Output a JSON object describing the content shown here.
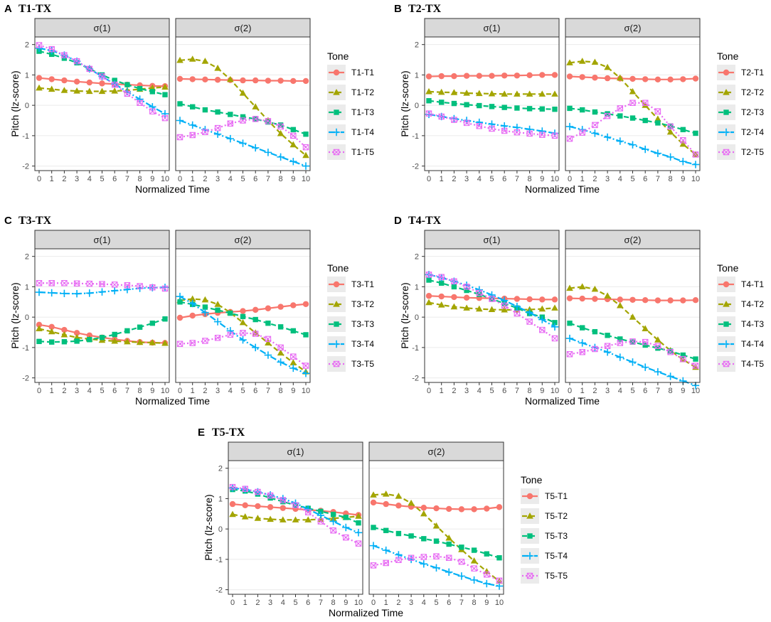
{
  "figure": {
    "colors": {
      "T1": "#F8766D",
      "T2": "#A3A500",
      "T3": "#00BF7D",
      "T4": "#00B0F6",
      "T5": "#E76BF3"
    },
    "markers": {
      "T1": "circle",
      "T2": "triangle",
      "T3": "square",
      "T4": "plus",
      "T5": "square-cross"
    }
  },
  "chart_data": [
    {
      "type": "line",
      "panel_letter": "A",
      "title": "T1-TX",
      "facets": [
        "σ(1)",
        "σ(2)"
      ],
      "xlabel": "Normalized Time",
      "ylabel": "Pitch (lz-score)",
      "x": [
        0,
        1,
        2,
        3,
        4,
        5,
        6,
        7,
        8,
        9,
        10
      ],
      "ylim": [
        -2.15,
        2.25
      ],
      "yticks": [
        -2,
        -1,
        0,
        1,
        2
      ],
      "legend_title": "Tone",
      "series": [
        {
          "name": "T1-T1",
          "tone": "T1",
          "facet1": [
            0.9,
            0.86,
            0.82,
            0.78,
            0.75,
            0.72,
            0.7,
            0.68,
            0.66,
            0.64,
            0.63
          ],
          "facet2": [
            0.87,
            0.86,
            0.85,
            0.84,
            0.83,
            0.82,
            0.82,
            0.81,
            0.81,
            0.8,
            0.8
          ]
        },
        {
          "name": "T1-T2",
          "tone": "T1",
          "facet1": [
            0.57,
            0.53,
            0.49,
            0.47,
            0.46,
            0.46,
            0.47,
            0.49,
            0.53,
            0.57,
            0.6
          ],
          "facet2": [
            1.48,
            1.52,
            1.45,
            1.22,
            0.85,
            0.4,
            -0.05,
            -0.5,
            -0.93,
            -1.3,
            -1.65
          ]
        },
        {
          "name": "T1-T3",
          "tone": "T1",
          "facet1": [
            1.78,
            1.68,
            1.55,
            1.4,
            1.2,
            1.0,
            0.82,
            0.68,
            0.55,
            0.45,
            0.35
          ],
          "facet2": [
            0.05,
            -0.05,
            -0.15,
            -0.22,
            -0.3,
            -0.38,
            -0.45,
            -0.55,
            -0.65,
            -0.8,
            -0.95
          ]
        },
        {
          "name": "T1-T4",
          "tone": "T1",
          "facet1": [
            1.88,
            1.8,
            1.65,
            1.45,
            1.2,
            0.95,
            0.7,
            0.45,
            0.2,
            -0.05,
            -0.28
          ],
          "facet2": [
            -0.5,
            -0.65,
            -0.8,
            -0.95,
            -1.1,
            -1.25,
            -1.4,
            -1.55,
            -1.7,
            -1.85,
            -2.0
          ]
        },
        {
          "name": "T1-T5",
          "tone": "T1",
          "facet1": [
            1.98,
            1.85,
            1.65,
            1.45,
            1.2,
            0.95,
            0.68,
            0.38,
            0.08,
            -0.2,
            -0.42
          ],
          "facet2": [
            -1.05,
            -0.98,
            -0.88,
            -0.75,
            -0.6,
            -0.5,
            -0.45,
            -0.52,
            -0.7,
            -1.0,
            -1.38
          ]
        }
      ]
    },
    {
      "type": "line",
      "panel_letter": "B",
      "title": "T2-TX",
      "facets": [
        "σ(1)",
        "σ(2)"
      ],
      "xlabel": "Normalized Time",
      "ylabel": "Pitch (lz-score)",
      "x": [
        0,
        1,
        2,
        3,
        4,
        5,
        6,
        7,
        8,
        9,
        10
      ],
      "ylim": [
        -2.15,
        2.25
      ],
      "yticks": [
        -2,
        -1,
        0,
        1,
        2
      ],
      "legend_title": "Tone",
      "series": [
        {
          "name": "T2-T1",
          "tone": "T1",
          "facet1": [
            0.95,
            0.96,
            0.96,
            0.97,
            0.97,
            0.97,
            0.98,
            0.98,
            0.99,
            1.0,
            1.0
          ],
          "facet2": [
            0.95,
            0.93,
            0.91,
            0.89,
            0.88,
            0.87,
            0.86,
            0.85,
            0.85,
            0.86,
            0.88
          ]
        },
        {
          "name": "T2-T2",
          "tone": "T2",
          "facet1": [
            0.45,
            0.43,
            0.42,
            0.4,
            0.39,
            0.38,
            0.37,
            0.37,
            0.37,
            0.37,
            0.37
          ],
          "facet2": [
            1.4,
            1.45,
            1.42,
            1.25,
            0.9,
            0.45,
            0.0,
            -0.45,
            -0.88,
            -1.28,
            -1.62
          ]
        },
        {
          "name": "T2-T3",
          "tone": "T2",
          "facet1": [
            0.15,
            0.1,
            0.06,
            0.02,
            -0.01,
            -0.04,
            -0.07,
            -0.09,
            -0.11,
            -0.12,
            -0.13
          ],
          "facet2": [
            -0.1,
            -0.15,
            -0.22,
            -0.28,
            -0.35,
            -0.42,
            -0.5,
            -0.58,
            -0.68,
            -0.8,
            -0.92
          ]
        },
        {
          "name": "T2-T4",
          "tone": "T2",
          "facet1": [
            -0.3,
            -0.37,
            -0.44,
            -0.5,
            -0.56,
            -0.62,
            -0.68,
            -0.73,
            -0.79,
            -0.85,
            -0.92
          ],
          "facet2": [
            -0.7,
            -0.8,
            -0.92,
            -1.05,
            -1.18,
            -1.3,
            -1.45,
            -1.58,
            -1.7,
            -1.85,
            -1.95
          ]
        },
        {
          "name": "T2-T5",
          "tone": "T2",
          "facet1": [
            -0.27,
            -0.37,
            -0.48,
            -0.58,
            -0.68,
            -0.77,
            -0.84,
            -0.89,
            -0.93,
            -0.97,
            -1.0
          ],
          "facet2": [
            -1.1,
            -0.9,
            -0.65,
            -0.35,
            -0.1,
            0.08,
            0.08,
            -0.2,
            -0.7,
            -1.15,
            -1.62
          ]
        }
      ]
    },
    {
      "type": "line",
      "panel_letter": "C",
      "title": "T3-TX",
      "facets": [
        "σ(1)",
        "σ(2)"
      ],
      "xlabel": "Normalized Time",
      "ylabel": "Pitch (lz-score)",
      "x": [
        0,
        1,
        2,
        3,
        4,
        5,
        6,
        7,
        8,
        9,
        10
      ],
      "ylim": [
        -2.15,
        2.25
      ],
      "yticks": [
        -2,
        -1,
        0,
        1,
        2
      ],
      "legend_title": "Tone",
      "series": [
        {
          "name": "T3-T1",
          "tone": "T1",
          "facet1": [
            -0.25,
            -0.32,
            -0.42,
            -0.52,
            -0.6,
            -0.67,
            -0.73,
            -0.78,
            -0.82,
            -0.84,
            -0.85
          ],
          "facet2": [
            -0.02,
            0.05,
            0.1,
            0.14,
            0.17,
            0.2,
            0.24,
            0.29,
            0.34,
            0.39,
            0.43
          ]
        },
        {
          "name": "T3-T2",
          "tone": "T1",
          "facet1": [
            -0.38,
            -0.48,
            -0.58,
            -0.67,
            -0.72,
            -0.76,
            -0.79,
            -0.81,
            -0.83,
            -0.84,
            -0.86
          ],
          "facet2": [
            0.55,
            0.6,
            0.57,
            0.42,
            0.15,
            -0.18,
            -0.52,
            -0.85,
            -1.18,
            -1.5,
            -1.8
          ]
        },
        {
          "name": "T3-T3",
          "tone": "T1",
          "facet1": [
            -0.8,
            -0.82,
            -0.81,
            -0.79,
            -0.74,
            -0.67,
            -0.57,
            -0.45,
            -0.33,
            -0.2,
            -0.06
          ],
          "facet2": [
            0.5,
            0.42,
            0.33,
            0.23,
            0.13,
            0.02,
            -0.08,
            -0.2,
            -0.32,
            -0.45,
            -0.58
          ]
        },
        {
          "name": "T3-T4",
          "tone": "T1",
          "facet1": [
            0.82,
            0.8,
            0.78,
            0.77,
            0.79,
            0.83,
            0.87,
            0.91,
            0.95,
            0.97,
            0.98
          ],
          "facet2": [
            0.68,
            0.45,
            0.15,
            -0.15,
            -0.45,
            -0.75,
            -1.0,
            -1.25,
            -1.48,
            -1.68,
            -1.85
          ]
        },
        {
          "name": "T3-T5",
          "tone": "T1",
          "facet1": [
            1.12,
            1.12,
            1.12,
            1.11,
            1.1,
            1.09,
            1.07,
            1.05,
            1.02,
            0.98,
            0.94
          ],
          "facet2": [
            -0.88,
            -0.85,
            -0.78,
            -0.68,
            -0.58,
            -0.52,
            -0.55,
            -0.72,
            -1.0,
            -1.3,
            -1.6
          ]
        }
      ]
    },
    {
      "type": "line",
      "panel_letter": "D",
      "title": "T4-TX",
      "facets": [
        "σ(1)",
        "σ(2)"
      ],
      "xlabel": "Normalized Time",
      "ylabel": "Pitch (lz-score)",
      "x": [
        0,
        1,
        2,
        3,
        4,
        5,
        6,
        7,
        8,
        9,
        10
      ],
      "ylim": [
        -2.15,
        2.25
      ],
      "yticks": [
        -2,
        -1,
        0,
        1,
        2
      ],
      "legend_title": "Tone",
      "series": [
        {
          "name": "T4-T1",
          "tone": "T1",
          "facet1": [
            0.7,
            0.68,
            0.66,
            0.64,
            0.63,
            0.62,
            0.61,
            0.6,
            0.59,
            0.58,
            0.58
          ],
          "facet2": [
            0.62,
            0.61,
            0.6,
            0.59,
            0.58,
            0.57,
            0.56,
            0.55,
            0.55,
            0.55,
            0.56
          ]
        },
        {
          "name": "T4-T2",
          "tone": "T4",
          "facet1": [
            0.48,
            0.4,
            0.34,
            0.3,
            0.27,
            0.25,
            0.24,
            0.24,
            0.25,
            0.27,
            0.3
          ],
          "facet2": [
            0.95,
            1.0,
            0.92,
            0.7,
            0.38,
            0.0,
            -0.38,
            -0.75,
            -1.1,
            -1.4,
            -1.65
          ]
        },
        {
          "name": "T4-T3",
          "tone": "T4",
          "facet1": [
            1.22,
            1.12,
            1.0,
            0.88,
            0.75,
            0.6,
            0.45,
            0.3,
            0.12,
            0.0,
            -0.18
          ],
          "facet2": [
            -0.2,
            -0.35,
            -0.48,
            -0.6,
            -0.72,
            -0.82,
            -0.92,
            -1.02,
            -1.12,
            -1.25,
            -1.38
          ]
        },
        {
          "name": "T4-T4",
          "tone": "T4",
          "facet1": [
            1.4,
            1.3,
            1.18,
            1.05,
            0.9,
            0.73,
            0.55,
            0.35,
            0.15,
            -0.08,
            -0.32
          ],
          "facet2": [
            -0.7,
            -0.85,
            -1.0,
            -1.15,
            -1.32,
            -1.48,
            -1.65,
            -1.8,
            -1.95,
            -2.1,
            -2.25
          ]
        },
        {
          "name": "T4-T5",
          "tone": "T4",
          "facet1": [
            1.4,
            1.32,
            1.18,
            1.0,
            0.8,
            0.6,
            0.38,
            0.12,
            -0.15,
            -0.42,
            -0.7
          ],
          "facet2": [
            -1.22,
            -1.15,
            -1.05,
            -0.95,
            -0.85,
            -0.8,
            -0.82,
            -0.95,
            -1.15,
            -1.38,
            -1.6
          ]
        }
      ]
    },
    {
      "type": "line",
      "panel_letter": "E",
      "title": "T5-TX",
      "facets": [
        "σ(1)",
        "σ(2)"
      ],
      "xlabel": "Normalized Time",
      "ylabel": "Pitch (lz-score)",
      "x": [
        0,
        1,
        2,
        3,
        4,
        5,
        6,
        7,
        8,
        9,
        10
      ],
      "ylim": [
        -2.15,
        2.25
      ],
      "yticks": [
        -2,
        -1,
        0,
        1,
        2
      ],
      "legend_title": "Tone",
      "series": [
        {
          "name": "T5-T1",
          "tone": "T1",
          "facet1": [
            0.82,
            0.78,
            0.75,
            0.72,
            0.69,
            0.66,
            0.63,
            0.6,
            0.56,
            0.51,
            0.46
          ],
          "facet2": [
            0.87,
            0.82,
            0.77,
            0.73,
            0.7,
            0.68,
            0.66,
            0.65,
            0.65,
            0.67,
            0.72
          ]
        },
        {
          "name": "T5-T2",
          "tone": "T2",
          "facet1": [
            0.48,
            0.4,
            0.35,
            0.32,
            0.3,
            0.3,
            0.3,
            0.32,
            0.35,
            0.38,
            0.42
          ],
          "facet2": [
            1.12,
            1.15,
            1.08,
            0.85,
            0.5,
            0.1,
            -0.3,
            -0.68,
            -1.05,
            -1.4,
            -1.72
          ]
        },
        {
          "name": "T5-T3",
          "tone": "T3",
          "facet1": [
            1.3,
            1.25,
            1.15,
            1.02,
            0.9,
            0.78,
            0.68,
            0.58,
            0.48,
            0.38,
            0.2
          ],
          "facet2": [
            0.05,
            -0.05,
            -0.15,
            -0.23,
            -0.32,
            -0.4,
            -0.5,
            -0.6,
            -0.7,
            -0.82,
            -0.95
          ]
        },
        {
          "name": "T5-T4",
          "tone": "T4",
          "facet1": [
            1.35,
            1.3,
            1.22,
            1.12,
            1.0,
            0.85,
            0.65,
            0.45,
            0.25,
            0.05,
            -0.12
          ],
          "facet2": [
            -0.55,
            -0.7,
            -0.85,
            -1.0,
            -1.15,
            -1.28,
            -1.42,
            -1.55,
            -1.68,
            -1.8,
            -1.88
          ]
        },
        {
          "name": "T5-T5",
          "tone": "T5",
          "facet1": [
            1.38,
            1.32,
            1.22,
            1.1,
            0.95,
            0.78,
            0.55,
            0.25,
            -0.05,
            -0.28,
            -0.48
          ],
          "facet2": [
            -1.2,
            -1.12,
            -1.02,
            -0.95,
            -0.92,
            -0.9,
            -0.95,
            -1.08,
            -1.3,
            -1.5,
            -1.7
          ]
        }
      ]
    }
  ]
}
